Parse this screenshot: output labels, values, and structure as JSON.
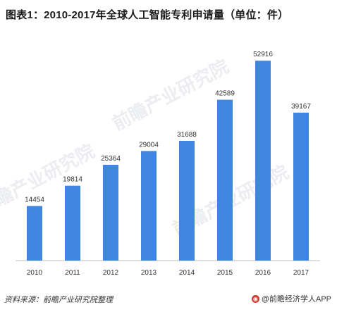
{
  "title": "图表1：2010-2017年全球人工智能专利申请量（单位：件）",
  "watermark": "前瞻产业研究院",
  "footer": {
    "source": "资料来源：前瞻产业研究院整理",
    "brand": "@前瞻经济学人APP"
  },
  "colors": {
    "bar": "#3f86e0",
    "axis": "#bfbfbf",
    "text": "#333333"
  },
  "chart_data": {
    "type": "bar",
    "title": "图表1：2010-2017年全球人工智能专利申请量（单位：件）",
    "categories": [
      "2010",
      "2011",
      "2012",
      "2013",
      "2014",
      "2015",
      "2016",
      "2017"
    ],
    "values": [
      14454,
      19814,
      25364,
      29004,
      31688,
      42589,
      52916,
      39167
    ],
    "value_labels": [
      "14454",
      "19814",
      "25364",
      "29004",
      "31688",
      "42589",
      "52916",
      "39167"
    ],
    "xlabel": "",
    "ylabel": "",
    "ylim": [
      0,
      55000
    ],
    "grid": false,
    "legend": "none"
  }
}
